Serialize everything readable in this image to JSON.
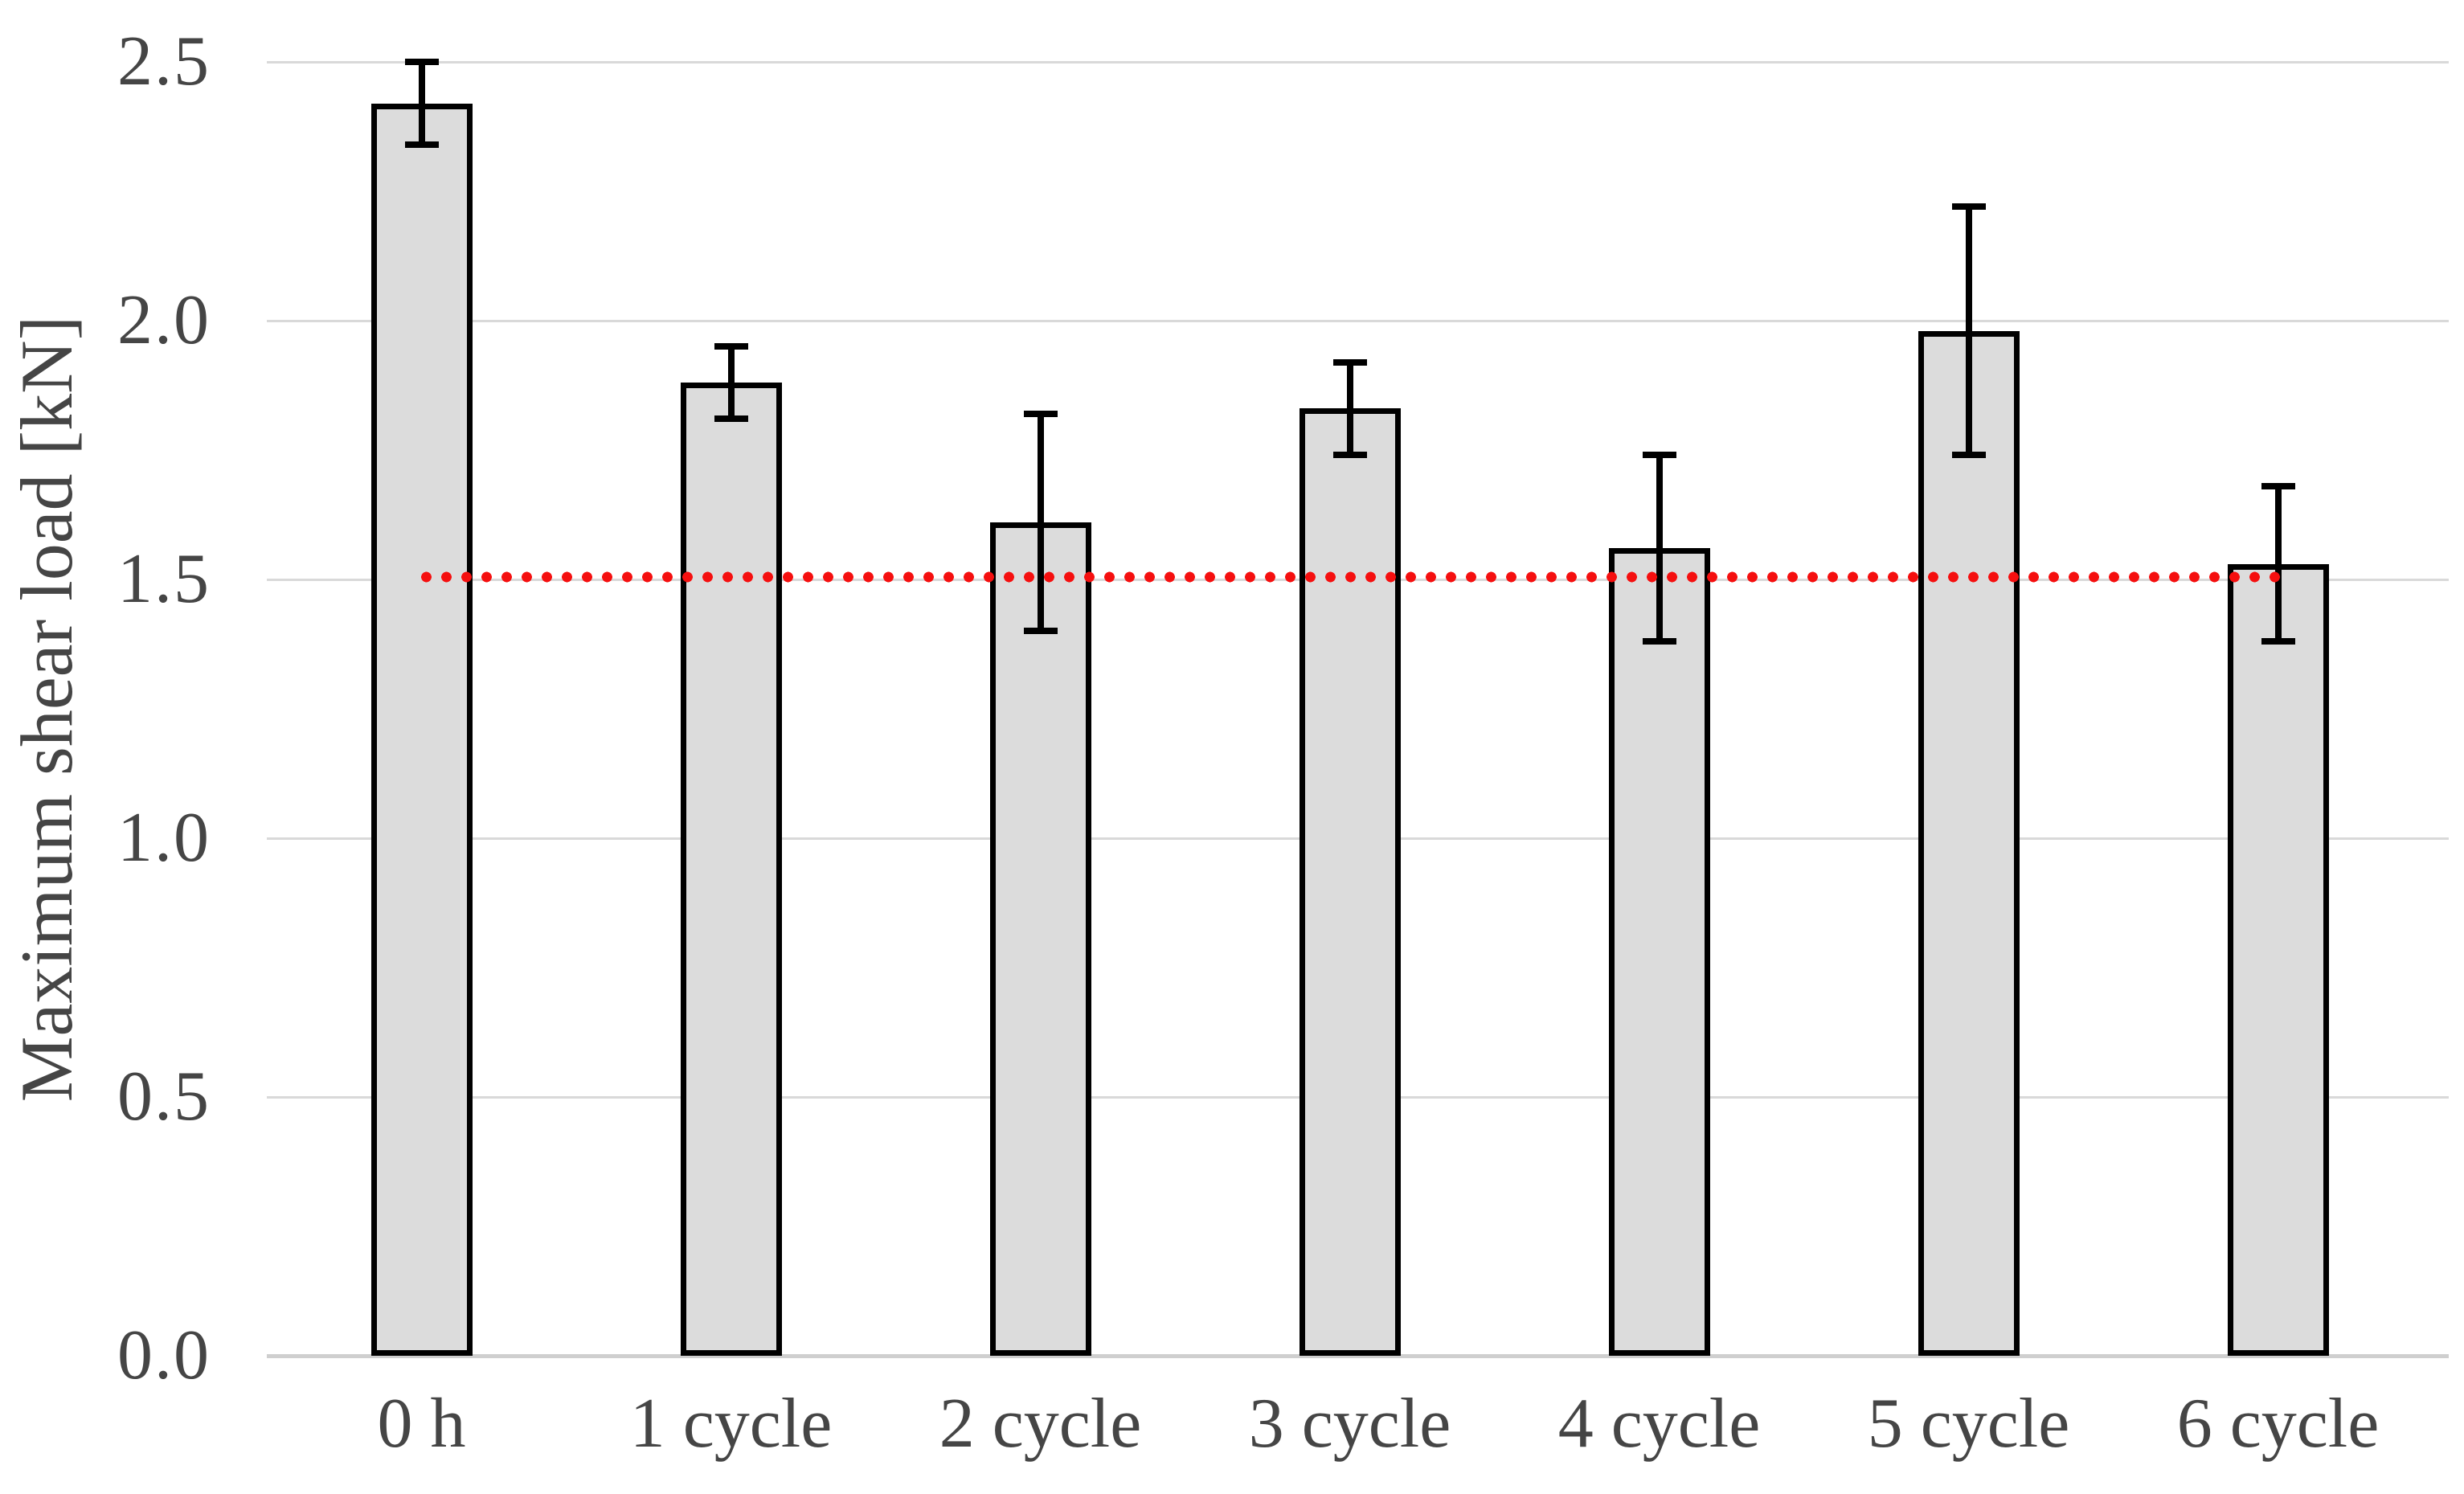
{
  "chart_data": {
    "type": "bar",
    "title": "",
    "ylabel": "Maximum shear load [kN]",
    "xlabel": "",
    "categories": [
      "0 h",
      "1 cycle",
      "2 cycle",
      "3 cycle",
      "4 cycle",
      "5 cycle",
      "6 cycle"
    ],
    "values": [
      2.42,
      1.88,
      1.61,
      1.83,
      1.56,
      1.98,
      1.53
    ],
    "errors": [
      0.08,
      0.07,
      0.21,
      0.09,
      0.18,
      0.24,
      0.15
    ],
    "ylim": [
      0,
      2.5
    ],
    "yticks": {
      "values": [
        0,
        0.5,
        1,
        1.5,
        2,
        2.5
      ],
      "labels": [
        "0.0",
        "0.5",
        "1.0",
        "1.5",
        "2.0",
        "2.5"
      ]
    },
    "grid": "horizontal gridlines on",
    "legend": "none",
    "reference_line": {
      "value": 1.5,
      "style": "dotted",
      "color": "#f50f0f",
      "extent": "from center of '0 h' bar to center of '6 cycle' bar"
    },
    "colors": {
      "bar_fill": "#dcdcdc",
      "bar_border": "#000000",
      "error_bar": "#000000",
      "gridline": "#d9d9d9",
      "axis_line": "#cfcfcf",
      "text": "#454545",
      "background": "#ffffff"
    }
  }
}
